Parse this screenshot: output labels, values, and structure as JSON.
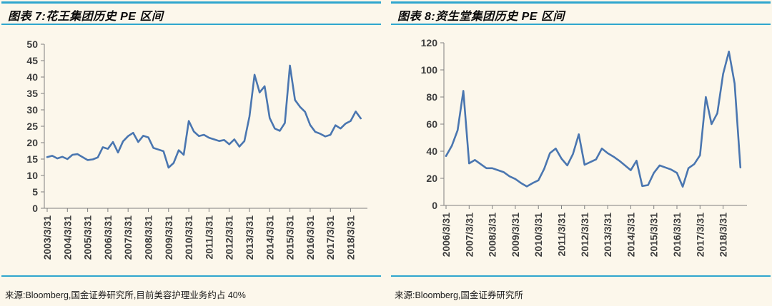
{
  "page": {
    "background": "#FCF7EB",
    "rule_color": "#2FA6CE",
    "line_color": "#4A76B0"
  },
  "chart_data": [
    {
      "type": "line",
      "title": "图表 7:花王集团历史 PE 区间",
      "source": "来源:Bloomberg,国金证券研究所,目前美容护理业务约占 40%",
      "ylim": [
        0,
        50
      ],
      "grid": false,
      "legend": "none",
      "y_tick_labels": [
        "0",
        "5",
        "10",
        "15",
        "20",
        "25",
        "30",
        "35",
        "40",
        "45",
        "50"
      ],
      "x_tick_labels": [
        "2003/3/31",
        "2004/3/31",
        "2005/3/31",
        "2006/3/31",
        "2007/3/31",
        "2008/3/31",
        "2009/3/31",
        "2010/3/31",
        "2011/3/31",
        "2012/3/31",
        "2013/3/31",
        "2014/3/31",
        "2015/3/31",
        "2016/3/31",
        "2017/3/31",
        "2018/3/31"
      ],
      "points_per_year": 4,
      "values": [
        15.6,
        16.0,
        15.2,
        15.7,
        15.0,
        16.3,
        16.5,
        15.6,
        14.7,
        14.9,
        15.5,
        18.6,
        18.1,
        20.2,
        17.0,
        20.4,
        22.0,
        23.0,
        20.2,
        22.1,
        21.6,
        18.4,
        17.9,
        17.4,
        12.4,
        13.8,
        17.7,
        16.3,
        26.6,
        23.4,
        22.0,
        22.4,
        21.5,
        21.0,
        20.5,
        20.8,
        19.5,
        21.0,
        18.8,
        20.5,
        28.0,
        40.7,
        35.3,
        37.2,
        27.5,
        24.3,
        23.6,
        26.0,
        43.5,
        33.0,
        30.9,
        29.4,
        25.4,
        23.3,
        22.7,
        21.9,
        22.4,
        25.3,
        24.3,
        25.8,
        26.6,
        29.5,
        27.4
      ]
    },
    {
      "type": "line",
      "title": "图表 8:资生堂集团历史 PE 区间",
      "source": "来源:Bloomberg,国金证券研究所",
      "ylim": [
        0,
        120
      ],
      "grid": false,
      "legend": "none",
      "y_tick_labels": [
        "0",
        "20",
        "40",
        "60",
        "80",
        "100",
        "120"
      ],
      "x_tick_labels": [
        "2006/3/31",
        "2007/3/31",
        "2008/3/31",
        "2009/3/31",
        "2010/3/31",
        "2011/3/31",
        "2012/3/31",
        "2013/3/31",
        "2014/3/31",
        "2015/3/31",
        "2016/3/31",
        "2017/3/31",
        "2018/3/31"
      ],
      "points_per_year": 4,
      "values": [
        36.5,
        44.0,
        55.5,
        84.5,
        31.0,
        33.5,
        30.5,
        27.5,
        27.5,
        26.0,
        24.5,
        21.5,
        19.5,
        16.5,
        14.0,
        16.5,
        18.5,
        27.0,
        38.5,
        42.0,
        34.5,
        29.5,
        38.0,
        52.5,
        30.0,
        32.0,
        34.0,
        42.0,
        38.5,
        36.0,
        33.0,
        29.5,
        26.0,
        33.0,
        14.3,
        15.0,
        24.0,
        29.5,
        28.0,
        26.5,
        24.0,
        13.8,
        27.5,
        30.5,
        37.0,
        80.0,
        60.0,
        68.0,
        97.0,
        113.5,
        90.0,
        28.0
      ]
    }
  ]
}
